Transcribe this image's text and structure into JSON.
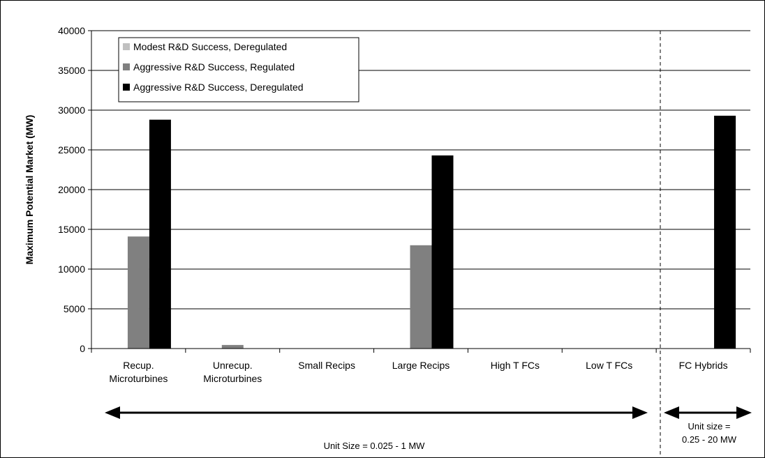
{
  "chart_data": {
    "type": "bar",
    "categories": [
      [
        "Recup.",
        "Microturbines"
      ],
      [
        "Unrecup.",
        "Microturbines"
      ],
      [
        "Small Recips"
      ],
      [
        "Large Recips"
      ],
      [
        "High T FCs"
      ],
      [
        "Low T FCs"
      ],
      [
        "FC Hybrids"
      ]
    ],
    "series": [
      {
        "name": "Modest R&D Success, Deregulated",
        "color": "#c0c0c0",
        "values": [
          0,
          0,
          0,
          0,
          0,
          0,
          0
        ]
      },
      {
        "name": "Aggressive R&D Success, Regulated",
        "color": "#808080",
        "values": [
          14100,
          450,
          0,
          13000,
          0,
          0,
          0
        ]
      },
      {
        "name": "Aggressive R&D Success, Deregulated",
        "color": "#000000",
        "values": [
          28800,
          0,
          0,
          24300,
          0,
          0,
          29300
        ]
      }
    ],
    "ylabel": "Maximum Potential Market (MW)",
    "ylim": [
      0,
      40000
    ],
    "yticks": [
      0,
      5000,
      10000,
      15000,
      20000,
      25000,
      30000,
      35000,
      40000
    ],
    "grid": true,
    "legend_position": "top-left",
    "annotations": [
      {
        "lines": [
          "Unit Size = 0.025 - 1 MW"
        ]
      },
      {
        "lines": [
          "Unit size =",
          "0.25 - 20 MW"
        ]
      }
    ]
  }
}
